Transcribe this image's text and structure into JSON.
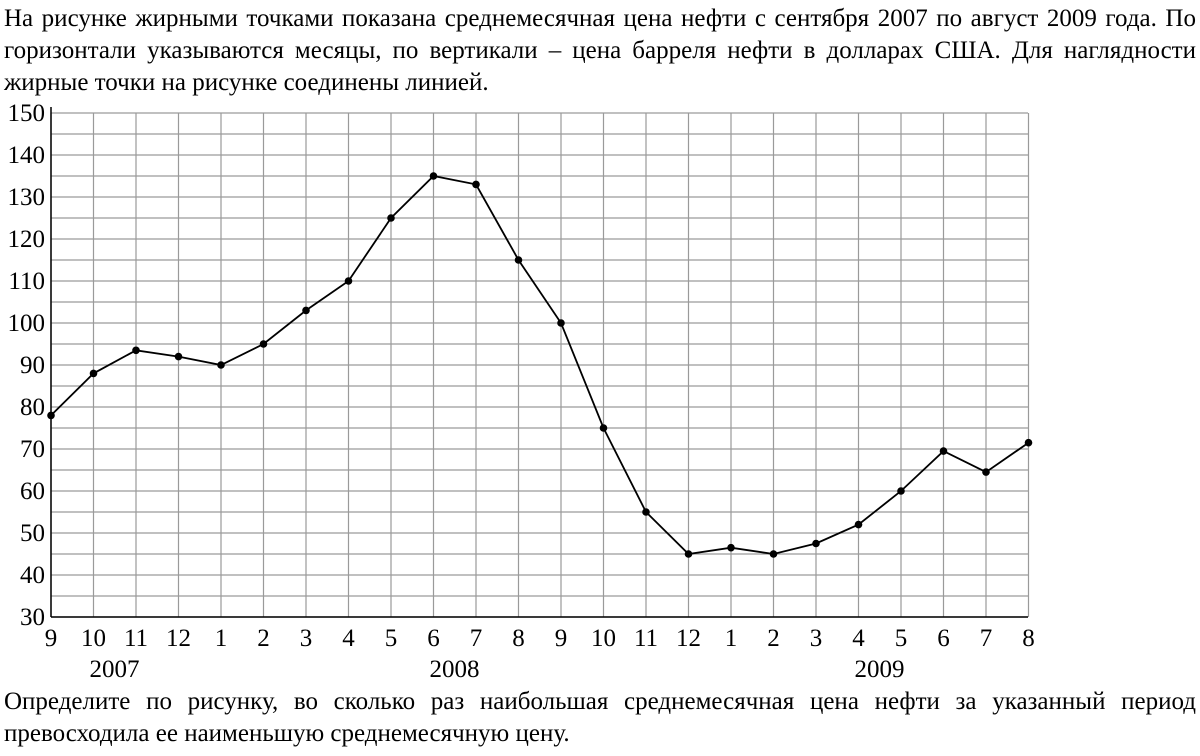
{
  "intro_text": "На рисунке жирными точками показана среднемесячная цена нефти с сентября 2007 по август 2009 года. По горизонтали указываются месяцы, по вертикали – цена барреля нефти в долларах США. Для наглядности жирные точки на рисунке соединены линией.",
  "question_text": "Определите по рисунку, во сколько раз наибольшая среднемесячная цена нефти за указанный период превосходила ее наименьшую среднемесячную цену.",
  "colors": {
    "grid": "#9a9a9a",
    "line": "#000000",
    "points": "#000000"
  },
  "chart_data": {
    "type": "line",
    "categories": [
      "9",
      "10",
      "11",
      "12",
      "1",
      "2",
      "3",
      "4",
      "5",
      "6",
      "7",
      "8",
      "9",
      "10",
      "11",
      "12",
      "1",
      "2",
      "3",
      "4",
      "5",
      "6",
      "7",
      "8"
    ],
    "year_labels": [
      {
        "label": "2007",
        "index": 1
      },
      {
        "label": "2008",
        "index": 9
      },
      {
        "label": "2009",
        "index": 19
      }
    ],
    "values": [
      78,
      88,
      93.5,
      92,
      90,
      95,
      103,
      110,
      125,
      135,
      133,
      115,
      100,
      75,
      55,
      45,
      46.5,
      45,
      47.5,
      52,
      60,
      69.5,
      64.5,
      71.5
    ],
    "ylim": [
      30,
      150
    ],
    "yticks": [
      30,
      40,
      50,
      60,
      70,
      80,
      90,
      100,
      110,
      120,
      130,
      140,
      150
    ],
    "minor_step": 5,
    "grid": true,
    "legend": "none"
  }
}
